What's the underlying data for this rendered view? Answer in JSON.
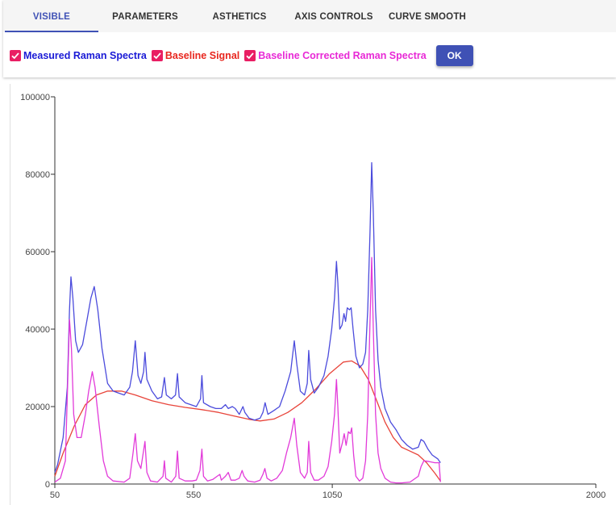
{
  "tabs": [
    {
      "label": "VISIBLE",
      "active": true
    },
    {
      "label": "PARAMETERS",
      "active": false
    },
    {
      "label": "ASTHETICS",
      "active": false
    },
    {
      "label": "AXIS CONTROLS",
      "active": false
    },
    {
      "label": "CURVE SMOOTH",
      "active": false
    }
  ],
  "visibility": {
    "items": [
      {
        "label": "Measured Raman Spectra",
        "checked": true,
        "color": "#1a1ad6",
        "icon": "check-icon"
      },
      {
        "label": "Baseline Signal",
        "checked": true,
        "color": "#e8271f",
        "icon": "check-icon"
      },
      {
        "label": "Baseline Corrected Raman Spectra",
        "checked": true,
        "color": "#e829d6",
        "icon": "check-icon"
      }
    ],
    "ok_label": "OK"
  },
  "colors": {
    "accent": "#3f51b5",
    "checkbox": "#e91e63",
    "measured": "#4b4bdc",
    "baseline": "#e8443a",
    "corrected": "#e23ad9"
  },
  "chart_data": {
    "type": "line",
    "title": "",
    "xlabel": "",
    "ylabel": "",
    "xlim": [
      50,
      2000
    ],
    "ylim": [
      0,
      100000
    ],
    "x_ticks": [
      "50",
      "550",
      "1050",
      "2000"
    ],
    "y_ticks": [
      "0",
      "20000",
      "40000",
      "60000",
      "80000",
      "100000"
    ],
    "grid": false,
    "series": [
      {
        "name": "Measured Raman Spectra",
        "color": "#4b4bdc",
        "points": [
          [
            50,
            3000
          ],
          [
            60,
            5000
          ],
          [
            80,
            12000
          ],
          [
            95,
            25000
          ],
          [
            103,
            45000
          ],
          [
            108,
            53500
          ],
          [
            115,
            48000
          ],
          [
            125,
            37000
          ],
          [
            135,
            34000
          ],
          [
            150,
            36000
          ],
          [
            165,
            42000
          ],
          [
            180,
            48000
          ],
          [
            192,
            51000
          ],
          [
            205,
            45000
          ],
          [
            220,
            35000
          ],
          [
            240,
            26000
          ],
          [
            260,
            24000
          ],
          [
            280,
            23500
          ],
          [
            300,
            23000
          ],
          [
            320,
            25000
          ],
          [
            330,
            29000
          ],
          [
            340,
            37000
          ],
          [
            350,
            28000
          ],
          [
            360,
            26000
          ],
          [
            370,
            29000
          ],
          [
            375,
            34000
          ],
          [
            382,
            27000
          ],
          [
            400,
            24000
          ],
          [
            420,
            22000
          ],
          [
            435,
            22500
          ],
          [
            445,
            27500
          ],
          [
            452,
            23000
          ],
          [
            470,
            22000
          ],
          [
            485,
            23000
          ],
          [
            492,
            28500
          ],
          [
            498,
            22500
          ],
          [
            520,
            21000
          ],
          [
            540,
            20500
          ],
          [
            560,
            20000
          ],
          [
            575,
            22000
          ],
          [
            580,
            28000
          ],
          [
            586,
            21000
          ],
          [
            610,
            20000
          ],
          [
            630,
            19500
          ],
          [
            650,
            19500
          ],
          [
            665,
            20500
          ],
          [
            675,
            19500
          ],
          [
            690,
            20000
          ],
          [
            700,
            19500
          ],
          [
            715,
            18000
          ],
          [
            728,
            20000
          ],
          [
            735,
            18500
          ],
          [
            750,
            17000
          ],
          [
            770,
            16500
          ],
          [
            790,
            17000
          ],
          [
            800,
            18500
          ],
          [
            808,
            21000
          ],
          [
            818,
            18000
          ],
          [
            840,
            19000
          ],
          [
            860,
            20000
          ],
          [
            880,
            24000
          ],
          [
            900,
            29000
          ],
          [
            913,
            37000
          ],
          [
            922,
            31000
          ],
          [
            935,
            24000
          ],
          [
            950,
            23000
          ],
          [
            960,
            26000
          ],
          [
            965,
            34500
          ],
          [
            972,
            27000
          ],
          [
            985,
            23500
          ],
          [
            1000,
            25000
          ],
          [
            1020,
            28000
          ],
          [
            1035,
            33000
          ],
          [
            1048,
            40000
          ],
          [
            1058,
            48000
          ],
          [
            1065,
            57500
          ],
          [
            1070,
            52000
          ],
          [
            1077,
            40000
          ],
          [
            1085,
            41000
          ],
          [
            1092,
            44000
          ],
          [
            1098,
            42000
          ],
          [
            1104,
            45500
          ],
          [
            1112,
            45000
          ],
          [
            1118,
            45500
          ],
          [
            1125,
            40000
          ],
          [
            1135,
            33000
          ],
          [
            1148,
            30000
          ],
          [
            1160,
            31000
          ],
          [
            1170,
            34000
          ],
          [
            1178,
            45000
          ],
          [
            1186,
            65000
          ],
          [
            1192,
            83000
          ],
          [
            1198,
            70000
          ],
          [
            1206,
            45000
          ],
          [
            1215,
            32000
          ],
          [
            1225,
            25000
          ],
          [
            1240,
            19500
          ],
          [
            1260,
            16000
          ],
          [
            1280,
            14000
          ],
          [
            1300,
            11500
          ],
          [
            1320,
            10000
          ],
          [
            1340,
            9000
          ],
          [
            1360,
            9500
          ],
          [
            1370,
            11500
          ],
          [
            1380,
            11000
          ],
          [
            1395,
            9000
          ],
          [
            1410,
            7500
          ],
          [
            1430,
            6500
          ],
          [
            1440,
            5500
          ]
        ]
      },
      {
        "name": "Baseline Signal",
        "color": "#e8443a",
        "points": [
          [
            50,
            2000
          ],
          [
            80,
            8000
          ],
          [
            120,
            15000
          ],
          [
            160,
            20500
          ],
          [
            200,
            23000
          ],
          [
            240,
            24000
          ],
          [
            290,
            24000
          ],
          [
            340,
            23000
          ],
          [
            400,
            21500
          ],
          [
            460,
            20500
          ],
          [
            520,
            19800
          ],
          [
            580,
            19200
          ],
          [
            640,
            18500
          ],
          [
            700,
            17500
          ],
          [
            750,
            16700
          ],
          [
            790,
            16300
          ],
          [
            840,
            16800
          ],
          [
            890,
            18500
          ],
          [
            940,
            21000
          ],
          [
            990,
            24500
          ],
          [
            1040,
            28500
          ],
          [
            1090,
            31500
          ],
          [
            1120,
            31800
          ],
          [
            1150,
            30500
          ],
          [
            1180,
            27000
          ],
          [
            1210,
            21500
          ],
          [
            1240,
            16000
          ],
          [
            1270,
            12000
          ],
          [
            1300,
            9500
          ],
          [
            1330,
            8500
          ],
          [
            1360,
            7500
          ],
          [
            1390,
            5500
          ],
          [
            1420,
            2800
          ],
          [
            1440,
            800
          ]
        ]
      },
      {
        "name": "Baseline Corrected Raman Spectra",
        "color": "#e23ad9",
        "points": [
          [
            50,
            500
          ],
          [
            70,
            1500
          ],
          [
            88,
            6000
          ],
          [
            96,
            25000
          ],
          [
            103,
            42500
          ],
          [
            110,
            35000
          ],
          [
            118,
            18000
          ],
          [
            130,
            12000
          ],
          [
            145,
            12000
          ],
          [
            160,
            18000
          ],
          [
            172,
            24000
          ],
          [
            185,
            29000
          ],
          [
            195,
            25000
          ],
          [
            210,
            15000
          ],
          [
            225,
            6000
          ],
          [
            240,
            2000
          ],
          [
            260,
            800
          ],
          [
            300,
            500
          ],
          [
            320,
            1500
          ],
          [
            332,
            8000
          ],
          [
            340,
            13000
          ],
          [
            348,
            6000
          ],
          [
            360,
            4000
          ],
          [
            375,
            11000
          ],
          [
            382,
            3000
          ],
          [
            395,
            800
          ],
          [
            420,
            500
          ],
          [
            440,
            2000
          ],
          [
            445,
            6000
          ],
          [
            450,
            1500
          ],
          [
            470,
            500
          ],
          [
            486,
            2000
          ],
          [
            492,
            8500
          ],
          [
            498,
            1500
          ],
          [
            520,
            800
          ],
          [
            545,
            800
          ],
          [
            560,
            1000
          ],
          [
            573,
            3500
          ],
          [
            580,
            9000
          ],
          [
            586,
            2000
          ],
          [
            600,
            800
          ],
          [
            620,
            1200
          ],
          [
            635,
            2000
          ],
          [
            645,
            2500
          ],
          [
            650,
            1000
          ],
          [
            665,
            2000
          ],
          [
            675,
            3000
          ],
          [
            685,
            1000
          ],
          [
            700,
            1000
          ],
          [
            715,
            1500
          ],
          [
            725,
            3500
          ],
          [
            732,
            2000
          ],
          [
            745,
            800
          ],
          [
            770,
            500
          ],
          [
            790,
            1000
          ],
          [
            800,
            2500
          ],
          [
            807,
            4000
          ],
          [
            815,
            1500
          ],
          [
            830,
            800
          ],
          [
            850,
            1500
          ],
          [
            870,
            3500
          ],
          [
            885,
            8000
          ],
          [
            900,
            12000
          ],
          [
            913,
            17000
          ],
          [
            922,
            10000
          ],
          [
            935,
            3000
          ],
          [
            950,
            1500
          ],
          [
            960,
            3000
          ],
          [
            965,
            11000
          ],
          [
            972,
            3000
          ],
          [
            985,
            1000
          ],
          [
            1000,
            1000
          ],
          [
            1020,
            2000
          ],
          [
            1035,
            4500
          ],
          [
            1048,
            11000
          ],
          [
            1058,
            18000
          ],
          [
            1065,
            27000
          ],
          [
            1070,
            20000
          ],
          [
            1077,
            8000
          ],
          [
            1086,
            10500
          ],
          [
            1093,
            13000
          ],
          [
            1100,
            10000
          ],
          [
            1108,
            13500
          ],
          [
            1115,
            13000
          ],
          [
            1120,
            14500
          ],
          [
            1127,
            7500
          ],
          [
            1135,
            2000
          ],
          [
            1148,
            800
          ],
          [
            1160,
            1500
          ],
          [
            1170,
            6000
          ],
          [
            1178,
            18000
          ],
          [
            1186,
            42000
          ],
          [
            1192,
            58500
          ],
          [
            1198,
            40000
          ],
          [
            1206,
            18000
          ],
          [
            1215,
            8000
          ],
          [
            1225,
            4000
          ],
          [
            1240,
            1500
          ],
          [
            1260,
            500
          ],
          [
            1280,
            300
          ],
          [
            1300,
            300
          ],
          [
            1330,
            500
          ],
          [
            1360,
            2000
          ],
          [
            1370,
            4500
          ],
          [
            1380,
            6000
          ],
          [
            1400,
            5800
          ],
          [
            1420,
            5500
          ],
          [
            1435,
            5500
          ],
          [
            1440,
            500
          ]
        ]
      }
    ]
  }
}
